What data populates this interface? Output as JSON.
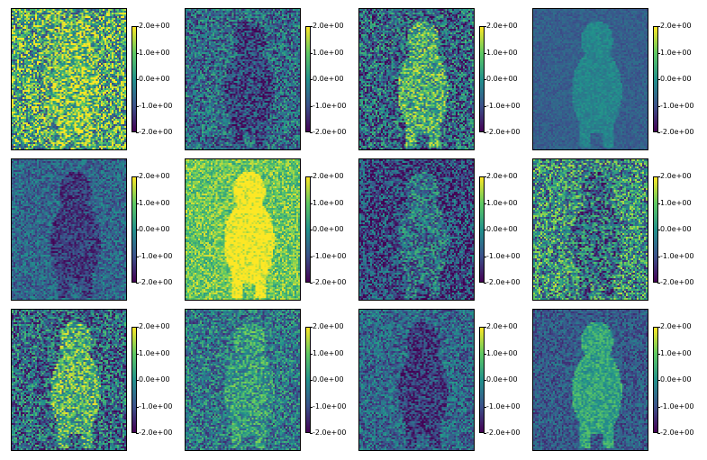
{
  "chart_data": {
    "type": "heatmap",
    "layout": {
      "rows": 3,
      "cols": 4
    },
    "colormap": "viridis",
    "colors": [
      "#440154",
      "#3b528b",
      "#21918c",
      "#5ec962",
      "#fde725"
    ],
    "colorbar": {
      "range": [
        -2.0,
        2.0
      ],
      "ticks": [
        2.0,
        1.0,
        0.0,
        -1.0,
        -2.0
      ],
      "tick_labels": [
        "2.0e+00",
        "1.0e+00",
        "0.0e+00",
        "-1.0e+00",
        "-2.0e+00"
      ]
    },
    "panels": [
      {
        "row": 1,
        "col": 1,
        "brightness": 0.62,
        "contrast": 0.9
      },
      {
        "row": 1,
        "col": 2,
        "brightness": 0.3,
        "contrast": 0.7
      },
      {
        "row": 1,
        "col": 3,
        "brightness": 0.38,
        "contrast": 1.0
      },
      {
        "row": 1,
        "col": 4,
        "brightness": 0.3,
        "contrast": 0.15
      },
      {
        "row": 2,
        "col": 1,
        "brightness": 0.28,
        "contrast": 0.45
      },
      {
        "row": 2,
        "col": 2,
        "brightness": 0.8,
        "contrast": 0.6
      },
      {
        "row": 2,
        "col": 3,
        "brightness": 0.22,
        "contrast": 0.6
      },
      {
        "row": 2,
        "col": 4,
        "brightness": 0.45,
        "contrast": 1.0
      },
      {
        "row": 3,
        "col": 1,
        "brightness": 0.4,
        "contrast": 1.0
      },
      {
        "row": 3,
        "col": 2,
        "brightness": 0.4,
        "contrast": 0.55
      },
      {
        "row": 3,
        "col": 3,
        "brightness": 0.28,
        "contrast": 0.55
      },
      {
        "row": 3,
        "col": 4,
        "brightness": 0.33,
        "contrast": 0.45
      }
    ]
  }
}
